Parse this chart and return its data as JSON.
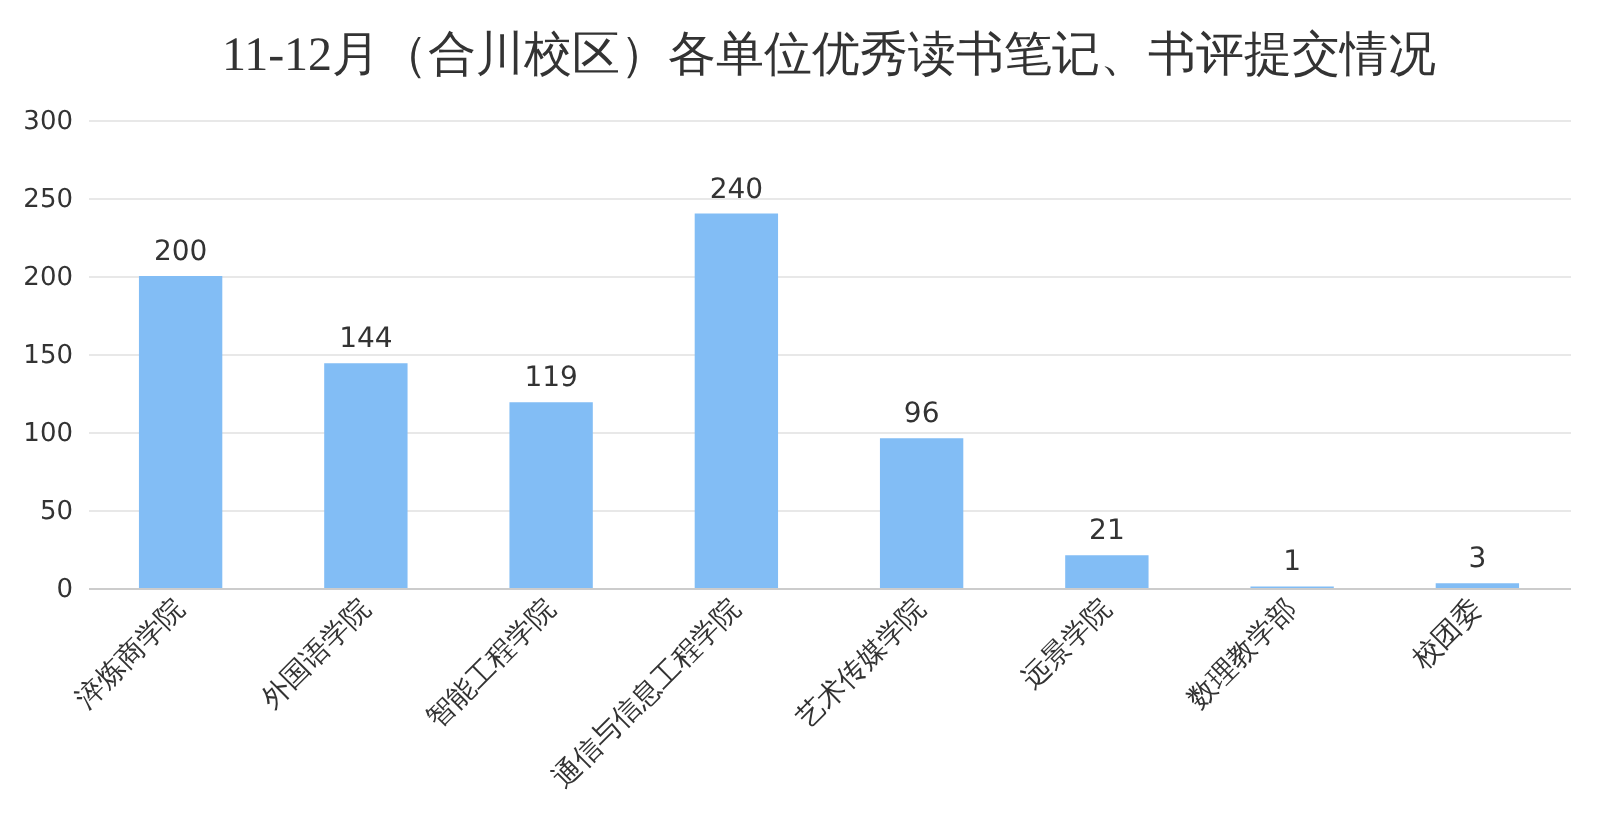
{
  "chart_data": {
    "type": "bar",
    "title": "11-12月（合川校区）各单位优秀读书笔记、书评提交情况",
    "categories": [
      "淬炼商学院",
      "外国语学院",
      "智能工程学院",
      "通信与信息工程学院",
      "艺术传媒学院",
      "远景学院",
      "数理教学部",
      "校团委"
    ],
    "values": [
      200,
      144,
      119,
      240,
      96,
      21,
      1,
      3
    ],
    "color": "#82bdf5",
    "ylim": [
      0,
      300
    ],
    "yticks": [
      0,
      50,
      100,
      150,
      200,
      250,
      300
    ],
    "grid": "y",
    "data_labels": true
  }
}
